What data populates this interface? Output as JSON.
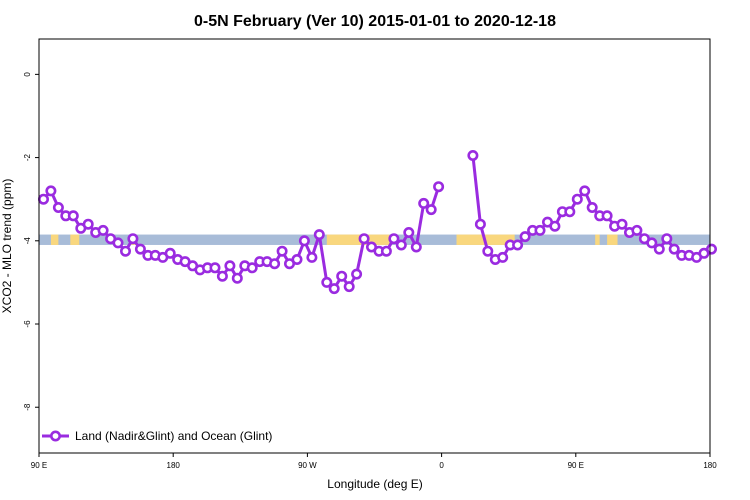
{
  "chart_data": {
    "type": "line",
    "title": "0-5N February (Ver 10)   2015-01-01 to 2020-12-18",
    "xlabel": "Longitude (deg E)",
    "ylabel": "XCO2 - MLO trend (ppm)",
    "xlim": [
      90,
      540
    ],
    "ylim": [
      -9.1,
      0.85
    ],
    "x_ticks": [
      {
        "value": 90,
        "label": "90 E"
      },
      {
        "value": 180,
        "label": "180"
      },
      {
        "value": 270,
        "label": "90 W"
      },
      {
        "value": 360,
        "label": "0"
      },
      {
        "value": 450,
        "label": "90 E"
      },
      {
        "value": 540,
        "label": "180"
      }
    ],
    "y_ticks": [
      {
        "value": 0,
        "label": "0"
      },
      {
        "value": -2,
        "label": "-2"
      },
      {
        "value": -4,
        "label": "-4"
      },
      {
        "value": -6,
        "label": "-6"
      },
      {
        "value": -8,
        "label": "-8"
      }
    ],
    "grid": false,
    "legend_position": "bottom-left",
    "surface_band": {
      "y_range": [
        -4.1,
        -3.85
      ],
      "ocean_color": "#a8bcd8",
      "land_color": "#f9d77e",
      "land_segments": [
        [
          98,
          103
        ],
        [
          111,
          117
        ],
        [
          152,
          155
        ],
        [
          283,
          325
        ],
        [
          370,
          409
        ],
        [
          463,
          466
        ],
        [
          471,
          478
        ]
      ]
    },
    "series": [
      {
        "name": "Land (Nadir&Glint) and Ocean (Glint)",
        "color": "#9a2be0",
        "segments": [
          {
            "x": [
              93,
              98,
              103,
              108,
              113,
              118,
              123,
              128,
              133,
              138,
              143,
              148,
              153,
              158,
              163,
              168,
              173,
              178,
              183,
              188,
              193,
              198,
              203,
              208,
              213,
              218,
              223,
              228,
              233,
              238,
              243,
              248,
              253,
              258,
              263,
              268,
              273,
              278,
              283,
              288,
              293,
              298,
              303,
              308,
              313,
              318,
              323,
              328,
              333,
              338,
              343,
              348,
              353,
              358,
              363
            ],
            "y": [
              -3.0,
              -2.8,
              -3.2,
              -3.4,
              -3.4,
              -3.7,
              -3.6,
              -3.8,
              -3.75,
              -3.95,
              -4.05,
              -4.25,
              -3.95,
              -4.2,
              -4.35,
              -4.35,
              -4.4,
              -4.3,
              -4.45,
              -4.5,
              -4.6,
              -4.7,
              -4.65,
              -4.65,
              -4.85,
              -4.6,
              -4.9,
              -4.6,
              -4.65,
              -4.5,
              -4.5,
              -4.55,
              -4.25,
              -4.55,
              -4.45,
              -4.0,
              -4.4,
              -3.85,
              -5.0,
              -5.15,
              -4.85,
              -5.1,
              -4.8,
              -3.95,
              -4.15,
              -4.25,
              -4.25,
              -3.95,
              -4.1,
              -3.8,
              -4.15,
              -3.1,
              -3.25,
              -2.7,
              null
            ]
          },
          {
            "x": [
              381,
              386,
              391,
              396,
              401,
              406,
              411,
              416,
              421,
              426,
              431,
              436,
              441,
              446,
              451,
              456,
              461,
              466,
              471,
              476,
              481,
              486,
              491,
              496,
              501,
              506,
              511,
              516,
              521,
              526,
              531,
              536,
              541
            ],
            "y": [
              -1.95,
              -3.6,
              -4.25,
              -4.45,
              -4.4,
              -4.1,
              -4.1,
              -3.9,
              -3.75,
              -3.75,
              -3.55,
              -3.65,
              -3.3,
              -3.3,
              -3.0,
              -2.8,
              -3.2,
              -3.4,
              -3.4,
              -3.65,
              -3.6,
              -3.8,
              -3.75,
              -3.95,
              -4.05,
              -4.2,
              -3.95,
              -4.2,
              -4.35,
              -4.35,
              -4.4,
              -4.3,
              -4.2
            ]
          }
        ]
      }
    ]
  }
}
